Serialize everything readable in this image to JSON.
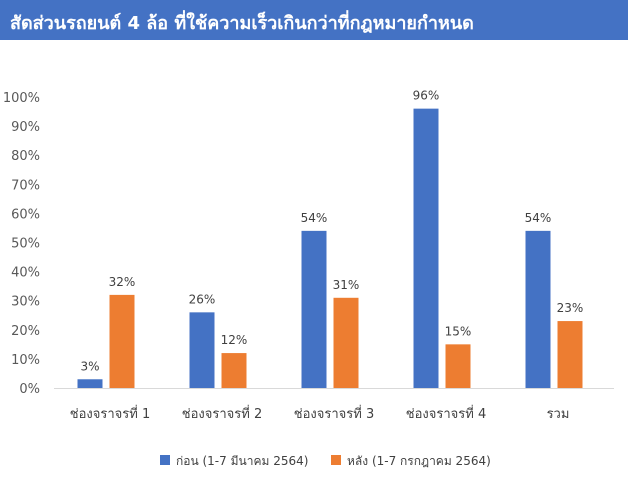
{
  "chart_data": {
    "type": "bar",
    "title": "สัดส่วนรถยนต์ 4 ล้อ ที่ใช้ความเร็วเกินกว่าที่กฎหมายกำหนด",
    "categories": [
      "ช่องจราจรที่ 1",
      "ช่องจราจรที่ 2",
      "ช่องจราจรที่ 3",
      "ช่องจราจรที่ 4",
      "รวม"
    ],
    "series": [
      {
        "name": "ก่อน (1-7 มีนาคม 2564)",
        "values": [
          3,
          26,
          54,
          96,
          54
        ],
        "labels": [
          "3%",
          "26%",
          "54%",
          "96%",
          "54%"
        ],
        "color": "#4472c4"
      },
      {
        "name": "หลัง (1-7 กรกฎาคม 2564)",
        "values": [
          32,
          12,
          31,
          15,
          23
        ],
        "labels": [
          "32%",
          "12%",
          "31%",
          "15%",
          "23%"
        ],
        "color": "#ed7d31"
      }
    ],
    "yticks": [
      "0%",
      "10%",
      "20%",
      "30%",
      "40%",
      "50%",
      "60%",
      "70%",
      "80%",
      "90%",
      "100%"
    ],
    "ylim": [
      0,
      100
    ],
    "xlabel": "",
    "ylabel": "",
    "legend_position": "bottom",
    "grid": false
  }
}
